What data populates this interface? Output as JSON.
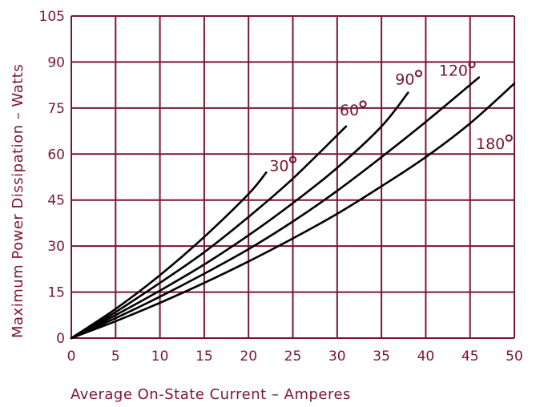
{
  "chart_data": {
    "type": "line",
    "xlabel": "Average On-State Current – Amperes",
    "ylabel": "Maximum Power Dissipation – Watts",
    "xlim": [
      0,
      50
    ],
    "ylim": [
      0,
      105
    ],
    "x_ticks": [
      "0",
      "5",
      "10",
      "15",
      "20",
      "25",
      "30",
      "35",
      "40",
      "45",
      "50"
    ],
    "y_ticks": [
      "0",
      "15",
      "30",
      "45",
      "60",
      "75",
      "90",
      "105"
    ],
    "grid": true,
    "colors": {
      "grid": "#7a1630",
      "text": "#7a1630",
      "curves": "#000000"
    },
    "series": [
      {
        "name": "30°",
        "x": [
          0,
          5,
          10,
          15,
          20,
          22
        ],
        "y": [
          0,
          9.5,
          20.5,
          33,
          47,
          54
        ]
      },
      {
        "name": "60°",
        "x": [
          0,
          5,
          10,
          15,
          20,
          25,
          31
        ],
        "y": [
          0,
          8.5,
          18,
          28,
          39.5,
          52,
          69
        ]
      },
      {
        "name": "90°",
        "x": [
          0,
          5,
          10,
          15,
          20,
          25,
          30,
          35,
          38
        ],
        "y": [
          0,
          7.5,
          15.5,
          24,
          33.5,
          44,
          55.5,
          69,
          80
        ]
      },
      {
        "name": "120°",
        "x": [
          0,
          5,
          10,
          15,
          20,
          25,
          30,
          35,
          40,
          46
        ],
        "y": [
          0,
          6.5,
          13.5,
          21,
          29,
          38,
          48,
          59,
          70.5,
          85
        ]
      },
      {
        "name": "180°",
        "x": [
          0,
          5,
          10,
          15,
          20,
          25,
          30,
          35,
          40,
          45,
          50
        ],
        "y": [
          0,
          5.5,
          11.5,
          18,
          25,
          32.5,
          40.5,
          49.5,
          59,
          70,
          83
        ]
      }
    ]
  }
}
